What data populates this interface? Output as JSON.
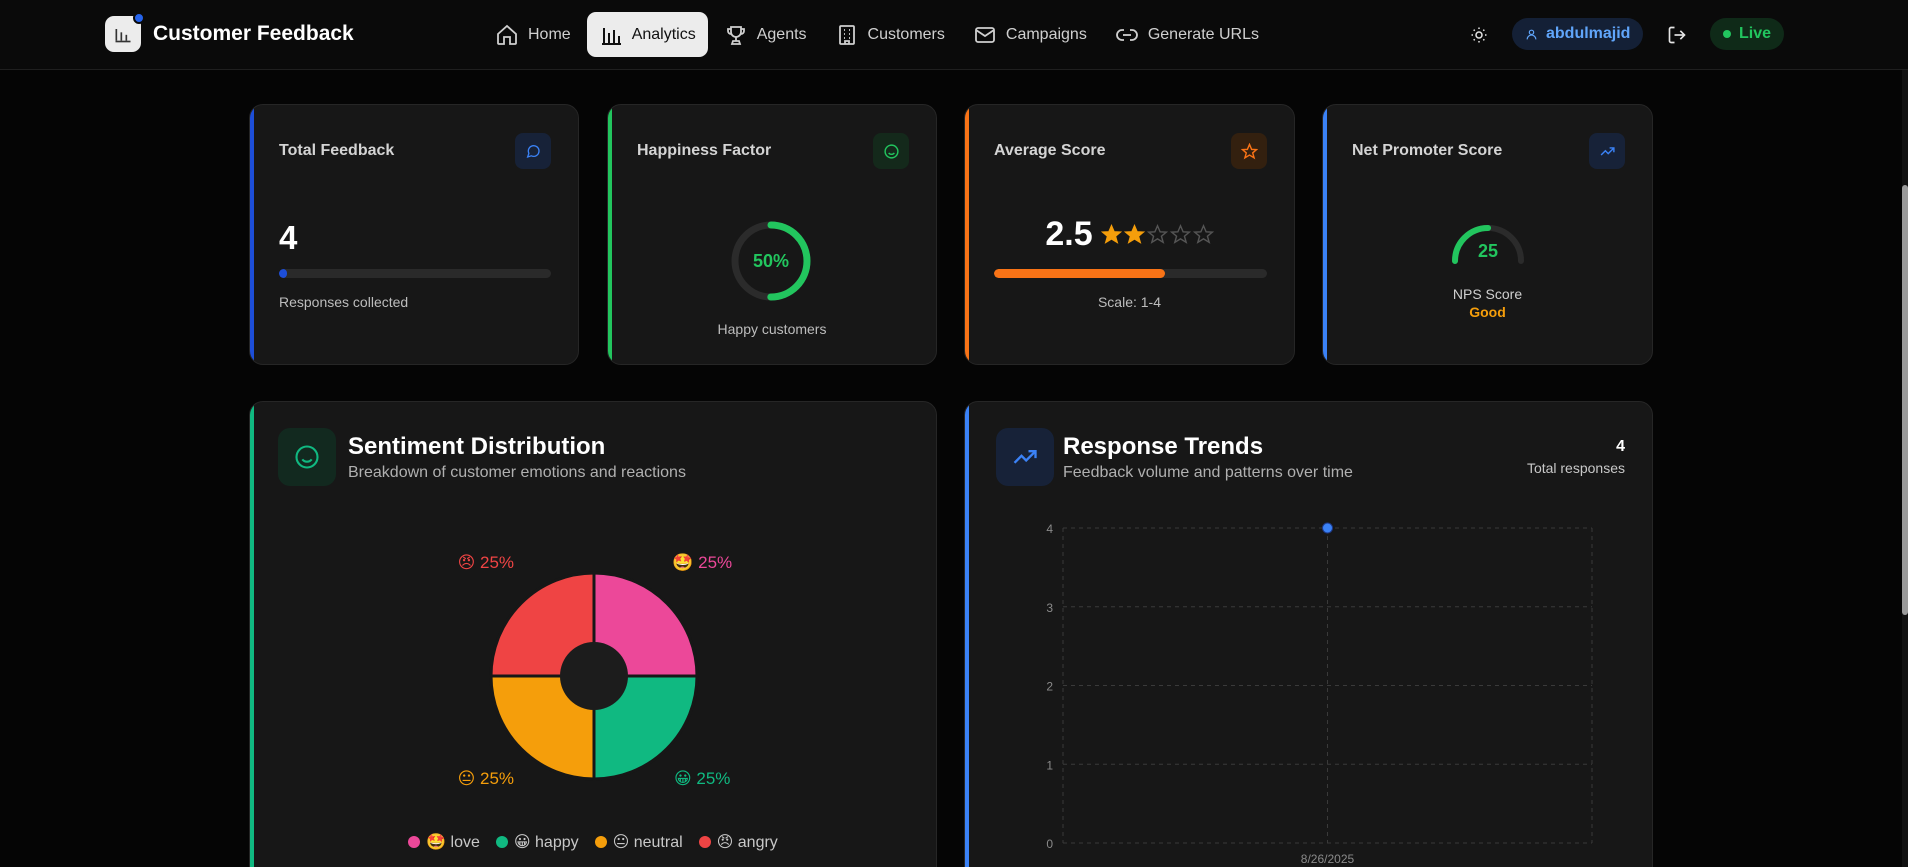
{
  "app": {
    "title": "Customer Feedback"
  },
  "nav": {
    "items": [
      {
        "label": "Home",
        "icon": "home-icon"
      },
      {
        "label": "Analytics",
        "icon": "bar-chart-icon",
        "active": true
      },
      {
        "label": "Agents",
        "icon": "trophy-icon"
      },
      {
        "label": "Customers",
        "icon": "building-icon"
      },
      {
        "label": "Campaigns",
        "icon": "mail-icon"
      },
      {
        "label": "Generate URLs",
        "icon": "link-icon"
      }
    ]
  },
  "header": {
    "username": "abdulmajid",
    "live_label": "Live"
  },
  "stats": {
    "total_feedback": {
      "label": "Total Feedback",
      "value": "4",
      "caption": "Responses collected",
      "progress": 0.03,
      "color": "#1d4ed8"
    },
    "happiness": {
      "label": "Happiness Factor",
      "value": "50%",
      "percent": 50,
      "caption": "Happy customers",
      "color": "#22c55e"
    },
    "average_score": {
      "label": "Average Score",
      "value": "2.5",
      "rating": 2,
      "stars_total": 5,
      "progress": 0.625,
      "caption": "Scale: 1-4",
      "color": "#f97316"
    },
    "nps": {
      "label": "Net Promoter Score",
      "value": "25",
      "caption": "NPS Score",
      "rating_text": "Good",
      "fill": 0.5,
      "color": "#3b82f6"
    }
  },
  "sentiment": {
    "title": "Sentiment Distribution",
    "subtitle": "Breakdown of customer emotions and reactions"
  },
  "trends": {
    "title": "Response Trends",
    "subtitle": "Feedback volume and patterns over time",
    "total_value": "4",
    "total_label": "Total responses"
  },
  "chart_data": [
    {
      "type": "pie",
      "categories": [
        "love",
        "happy",
        "neutral",
        "angry"
      ],
      "emojis": [
        "🤩",
        "😀",
        "😐",
        "😠"
      ],
      "values": [
        25,
        25,
        25,
        25
      ],
      "labels": [
        "25%",
        "25%",
        "25%",
        "25%"
      ],
      "colors": [
        "#ec4899",
        "#10b981",
        "#f59e0b",
        "#ef4444"
      ],
      "donut": true
    },
    {
      "type": "line",
      "x": [
        "8/26/2025"
      ],
      "series": [
        {
          "values": [
            4
          ]
        }
      ],
      "ylim": [
        0,
        4
      ],
      "yticks": [
        "0",
        "1",
        "2",
        "3",
        "4"
      ],
      "grid": true
    }
  ]
}
